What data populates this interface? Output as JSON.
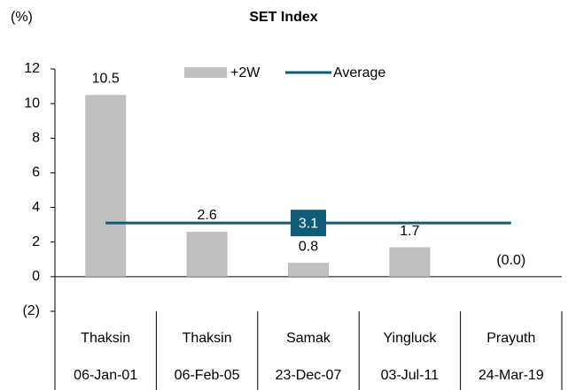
{
  "chart_data": {
    "type": "bar",
    "title": "SET Index",
    "y_axis_label": "(%)",
    "categories": [
      [
        "Thaksin",
        "06-Jan-01"
      ],
      [
        "Thaksin",
        "06-Feb-05"
      ],
      [
        "Samak",
        "23-Dec-07"
      ],
      [
        "Yingluck",
        "03-Jul-11"
      ],
      [
        "Prayuth",
        "24-Mar-19"
      ]
    ],
    "series": [
      {
        "name": "+2W",
        "color": "#c0c0c0",
        "values": [
          10.5,
          2.6,
          0.8,
          1.7,
          0.0
        ],
        "value_labels": [
          "10.5",
          "2.6",
          "0.8",
          "1.7",
          "(0.0)"
        ]
      }
    ],
    "reference_line": {
      "name": "Average",
      "value": 3.1,
      "color": "#0f5b78"
    },
    "ylim": [
      -2,
      12
    ],
    "yticks": [
      12,
      10,
      8,
      6,
      4,
      2,
      0,
      {
        "value": -2,
        "label": "(2)"
      }
    ],
    "grid": false
  }
}
